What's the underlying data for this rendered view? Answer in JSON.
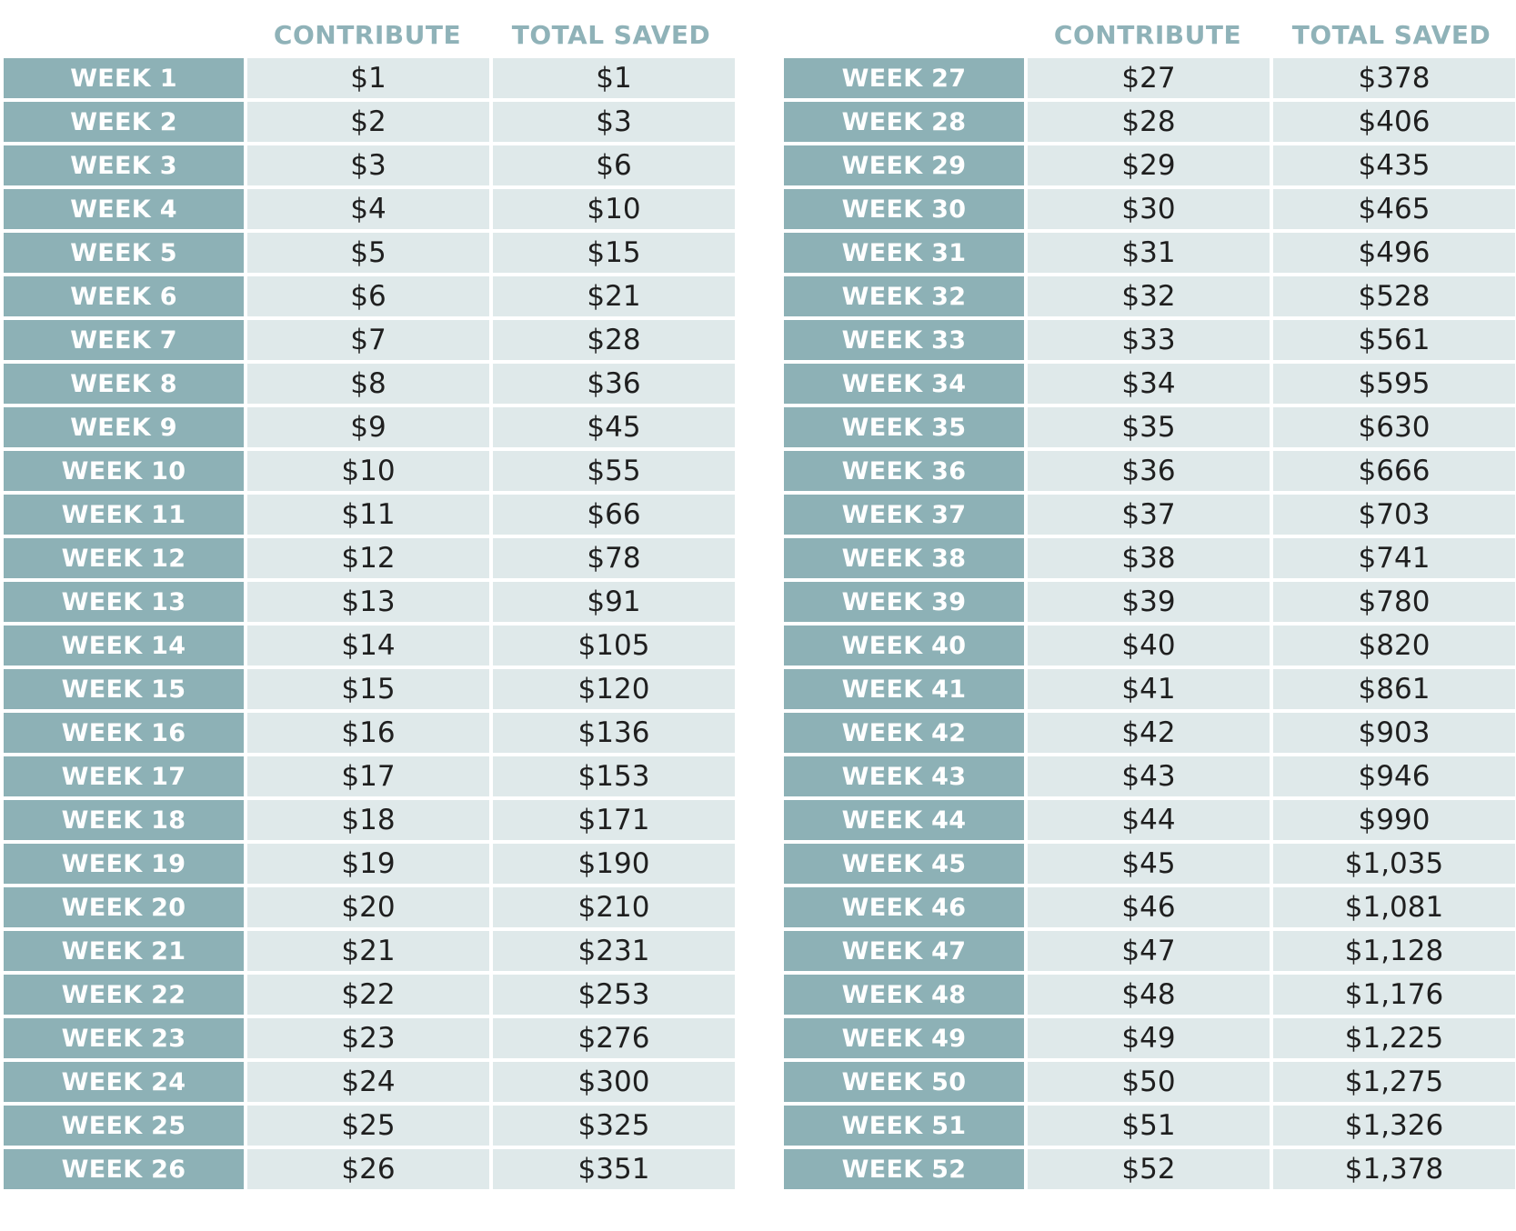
{
  "columns": {
    "contribute": "CONTRIBUTE",
    "total_saved": "TOTAL SAVED"
  },
  "left_rows": [
    {
      "week": "WEEK 1",
      "contribute": "$1",
      "total": "$1"
    },
    {
      "week": "WEEK 2",
      "contribute": "$2",
      "total": "$3"
    },
    {
      "week": "WEEK 3",
      "contribute": "$3",
      "total": "$6"
    },
    {
      "week": "WEEK 4",
      "contribute": "$4",
      "total": "$10"
    },
    {
      "week": "WEEK 5",
      "contribute": "$5",
      "total": "$15"
    },
    {
      "week": "WEEK 6",
      "contribute": "$6",
      "total": "$21"
    },
    {
      "week": "WEEK 7",
      "contribute": "$7",
      "total": "$28"
    },
    {
      "week": "WEEK 8",
      "contribute": "$8",
      "total": "$36"
    },
    {
      "week": "WEEK 9",
      "contribute": "$9",
      "total": "$45"
    },
    {
      "week": "WEEK 10",
      "contribute": "$10",
      "total": "$55"
    },
    {
      "week": "WEEK 11",
      "contribute": "$11",
      "total": "$66"
    },
    {
      "week": "WEEK 12",
      "contribute": "$12",
      "total": "$78"
    },
    {
      "week": "WEEK 13",
      "contribute": "$13",
      "total": "$91"
    },
    {
      "week": "WEEK 14",
      "contribute": "$14",
      "total": "$105"
    },
    {
      "week": "WEEK 15",
      "contribute": "$15",
      "total": "$120"
    },
    {
      "week": "WEEK 16",
      "contribute": "$16",
      "total": "$136"
    },
    {
      "week": "WEEK 17",
      "contribute": "$17",
      "total": "$153"
    },
    {
      "week": "WEEK 18",
      "contribute": "$18",
      "total": "$171"
    },
    {
      "week": "WEEK 19",
      "contribute": "$19",
      "total": "$190"
    },
    {
      "week": "WEEK 20",
      "contribute": "$20",
      "total": "$210"
    },
    {
      "week": "WEEK 21",
      "contribute": "$21",
      "total": "$231"
    },
    {
      "week": "WEEK 22",
      "contribute": "$22",
      "total": "$253"
    },
    {
      "week": "WEEK 23",
      "contribute": "$23",
      "total": "$276"
    },
    {
      "week": "WEEK 24",
      "contribute": "$24",
      "total": "$300"
    },
    {
      "week": "WEEK 25",
      "contribute": "$25",
      "total": "$325"
    },
    {
      "week": "WEEK 26",
      "contribute": "$26",
      "total": "$351"
    }
  ],
  "right_rows": [
    {
      "week": "WEEK 27",
      "contribute": "$27",
      "total": "$378"
    },
    {
      "week": "WEEK 28",
      "contribute": "$28",
      "total": "$406"
    },
    {
      "week": "WEEK 29",
      "contribute": "$29",
      "total": "$435"
    },
    {
      "week": "WEEK 30",
      "contribute": "$30",
      "total": "$465"
    },
    {
      "week": "WEEK 31",
      "contribute": "$31",
      "total": "$496"
    },
    {
      "week": "WEEK 32",
      "contribute": "$32",
      "total": "$528"
    },
    {
      "week": "WEEK 33",
      "contribute": "$33",
      "total": "$561"
    },
    {
      "week": "WEEK 34",
      "contribute": "$34",
      "total": "$595"
    },
    {
      "week": "WEEK 35",
      "contribute": "$35",
      "total": "$630"
    },
    {
      "week": "WEEK 36",
      "contribute": "$36",
      "total": "$666"
    },
    {
      "week": "WEEK 37",
      "contribute": "$37",
      "total": "$703"
    },
    {
      "week": "WEEK 38",
      "contribute": "$38",
      "total": "$741"
    },
    {
      "week": "WEEK 39",
      "contribute": "$39",
      "total": "$780"
    },
    {
      "week": "WEEK 40",
      "contribute": "$40",
      "total": "$820"
    },
    {
      "week": "WEEK 41",
      "contribute": "$41",
      "total": "$861"
    },
    {
      "week": "WEEK 42",
      "contribute": "$42",
      "total": "$903"
    },
    {
      "week": "WEEK 43",
      "contribute": "$43",
      "total": "$946"
    },
    {
      "week": "WEEK 44",
      "contribute": "$44",
      "total": "$990"
    },
    {
      "week": "WEEK 45",
      "contribute": "$45",
      "total": "$1,035"
    },
    {
      "week": "WEEK 46",
      "contribute": "$46",
      "total": "$1,081"
    },
    {
      "week": "WEEK 47",
      "contribute": "$47",
      "total": "$1,128"
    },
    {
      "week": "WEEK 48",
      "contribute": "$48",
      "total": "$1,176"
    },
    {
      "week": "WEEK 49",
      "contribute": "$49",
      "total": "$1,225"
    },
    {
      "week": "WEEK 50",
      "contribute": "$50",
      "total": "$1,275"
    },
    {
      "week": "WEEK 51",
      "contribute": "$51",
      "total": "$1,326"
    },
    {
      "week": "WEEK 52",
      "contribute": "$52",
      "total": "$1,378"
    }
  ],
  "colors": {
    "header_text": "#8fb2b8",
    "week_cell": "#8db1b6",
    "value_cell": "#dfe9ea"
  }
}
